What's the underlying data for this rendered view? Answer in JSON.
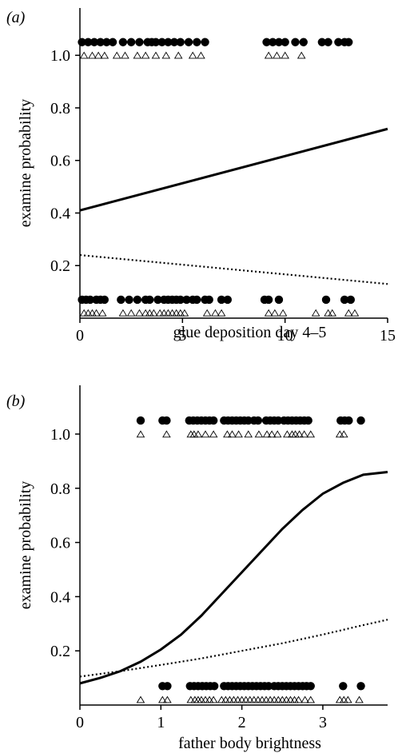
{
  "chart_data": [
    {
      "panel_label": "(a)",
      "type": "scatter",
      "xlabel": "glue deposition day 4–5",
      "ylabel": "examine probability",
      "xlim": [
        0,
        15
      ],
      "ylim": [
        0,
        1.18
      ],
      "xticks": [
        "0",
        "5",
        "10",
        "15"
      ],
      "xtick_values": [
        0,
        5,
        10,
        15
      ],
      "yticks": [
        "0.2",
        "0.4",
        "0.6",
        "0.8",
        "1.0"
      ],
      "ytick_values": [
        0.2,
        0.4,
        0.6,
        0.8,
        1.0
      ],
      "series": [
        {
          "marker": "filled-circle",
          "y_level_values": [
            1.05,
            0.07
          ],
          "x_top": [
            0.1,
            0.4,
            0.7,
            1.0,
            1.3,
            1.6,
            2.1,
            2.5,
            2.9,
            3.3,
            3.5,
            3.7,
            4.0,
            4.3,
            4.6,
            4.9,
            5.3,
            5.7,
            6.1,
            9.1,
            9.4,
            9.7,
            10.0,
            10.5,
            10.9,
            11.8,
            12.1,
            12.6,
            12.9,
            13.1
          ],
          "x_bottom": [
            0.1,
            0.3,
            0.5,
            0.8,
            1.0,
            1.2,
            2.0,
            2.4,
            2.8,
            3.2,
            3.4,
            3.8,
            4.1,
            4.3,
            4.5,
            4.7,
            4.9,
            5.2,
            5.5,
            5.7,
            6.1,
            6.3,
            6.9,
            7.2,
            9.0,
            9.2,
            9.7,
            12.0,
            12.9,
            13.2
          ]
        },
        {
          "marker": "open-triangle",
          "y_level_values": [
            1.0,
            0.02
          ],
          "x_top": [
            0.2,
            0.6,
            0.9,
            1.2,
            1.8,
            2.2,
            2.8,
            3.2,
            3.7,
            4.2,
            4.8,
            5.5,
            5.9,
            9.2,
            9.6,
            10.0,
            10.8
          ],
          "x_bottom": [
            0.2,
            0.4,
            0.6,
            0.8,
            1.1,
            2.1,
            2.5,
            2.9,
            3.2,
            3.4,
            3.6,
            3.9,
            4.1,
            4.3,
            4.5,
            4.7,
            4.9,
            5.1,
            6.2,
            6.6,
            6.9,
            9.2,
            9.5,
            9.9,
            11.5,
            12.1,
            12.3,
            13.1,
            13.4
          ]
        },
        {
          "line_style": "solid",
          "x": [
            0,
            15
          ],
          "y": [
            0.41,
            0.72
          ]
        },
        {
          "line_style": "dotted",
          "x": [
            0,
            15
          ],
          "y": [
            0.24,
            0.13
          ]
        }
      ]
    },
    {
      "panel_label": "(b)",
      "type": "scatter",
      "xlabel": "father body brightness",
      "ylabel": "examine probability",
      "xlim": [
        0,
        3.8
      ],
      "ylim": [
        0,
        1.18
      ],
      "xticks": [
        "0",
        "1",
        "2",
        "3"
      ],
      "xtick_values": [
        0,
        1,
        2,
        3
      ],
      "yticks": [
        "0.2",
        "0.4",
        "0.6",
        "0.8",
        "1.0"
      ],
      "ytick_values": [
        0.2,
        0.4,
        0.6,
        0.8,
        1.0
      ],
      "series": [
        {
          "marker": "filled-circle",
          "y_level_values": [
            1.05,
            0.07
          ],
          "x_top": [
            0.75,
            1.02,
            1.07,
            1.35,
            1.4,
            1.45,
            1.5,
            1.55,
            1.6,
            1.65,
            1.78,
            1.83,
            1.88,
            1.93,
            1.98,
            2.03,
            2.08,
            2.15,
            2.2,
            2.3,
            2.35,
            2.4,
            2.45,
            2.52,
            2.57,
            2.62,
            2.67,
            2.72,
            2.77,
            2.82,
            3.22,
            3.27,
            3.32,
            3.47
          ],
          "x_bottom": [
            1.02,
            1.08,
            1.36,
            1.41,
            1.46,
            1.51,
            1.56,
            1.61,
            1.66,
            1.78,
            1.83,
            1.88,
            1.93,
            1.98,
            2.03,
            2.08,
            2.13,
            2.18,
            2.23,
            2.28,
            2.33,
            2.4,
            2.45,
            2.5,
            2.55,
            2.6,
            2.65,
            2.7,
            2.75,
            2.8,
            2.85,
            3.25,
            3.47
          ]
        },
        {
          "marker": "open-triangle",
          "y_level_values": [
            1.0,
            0.02
          ],
          "x_top": [
            0.75,
            1.07,
            1.37,
            1.41,
            1.46,
            1.55,
            1.65,
            1.82,
            1.88,
            1.96,
            2.08,
            2.21,
            2.31,
            2.37,
            2.44,
            2.56,
            2.62,
            2.66,
            2.71,
            2.77,
            2.85,
            3.21,
            3.26
          ],
          "x_bottom": [
            0.75,
            1.02,
            1.08,
            1.37,
            1.42,
            1.46,
            1.5,
            1.55,
            1.6,
            1.65,
            1.75,
            1.8,
            1.85,
            1.9,
            1.95,
            2.0,
            2.05,
            2.1,
            2.15,
            2.2,
            2.25,
            2.3,
            2.35,
            2.4,
            2.45,
            2.5,
            2.55,
            2.6,
            2.65,
            2.7,
            2.78,
            2.85,
            3.21,
            3.26,
            3.31,
            3.45
          ]
        },
        {
          "line_style": "solid",
          "x": [
            0,
            0.25,
            0.5,
            0.75,
            1.0,
            1.25,
            1.5,
            1.75,
            2.0,
            2.25,
            2.5,
            2.75,
            3.0,
            3.25,
            3.5,
            3.8
          ],
          "y": [
            0.08,
            0.1,
            0.125,
            0.16,
            0.205,
            0.26,
            0.33,
            0.41,
            0.49,
            0.57,
            0.65,
            0.72,
            0.78,
            0.82,
            0.85,
            0.86
          ]
        },
        {
          "line_style": "dotted",
          "x": [
            0,
            0.5,
            1.0,
            1.5,
            2.0,
            2.5,
            3.0,
            3.5,
            3.8
          ],
          "y": [
            0.105,
            0.125,
            0.148,
            0.172,
            0.2,
            0.228,
            0.26,
            0.295,
            0.315
          ]
        }
      ]
    }
  ]
}
